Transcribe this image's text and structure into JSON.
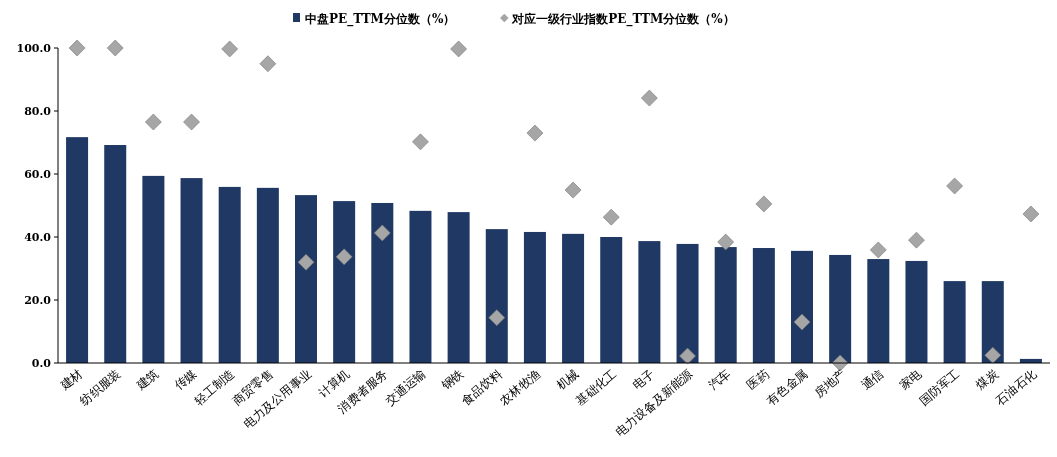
{
  "chart_data": {
    "type": "bar",
    "categories": [
      "建材",
      "纺织服装",
      "建筑",
      "传媒",
      "轻工制造",
      "商贸零售",
      "电力及公用事业",
      "计算机",
      "消费者服务",
      "交通运输",
      "钢铁",
      "食品饮料",
      "农林牧渔",
      "机械",
      "基础化工",
      "电子",
      "电力设备及新能源",
      "汽车",
      "医药",
      "有色金属",
      "房地产",
      "通信",
      "家电",
      "国防军工",
      "煤炭",
      "石油石化"
    ],
    "series": [
      {
        "name": "中盘PE_TTM分位数（%）",
        "color": "#1f3864",
        "values": [
          71.7,
          69.2,
          59.4,
          58.7,
          55.9,
          55.6,
          53.3,
          51.4,
          50.8,
          48.3,
          47.9,
          42.5,
          41.6,
          41.0,
          40.0,
          38.7,
          37.8,
          36.8,
          36.5,
          35.6,
          34.3,
          33.0,
          32.4,
          26.0,
          26.0,
          1.3
        ]
      },
      {
        "name": "对应一级行业指数PE_TTM分位数（%）",
        "type": "scatter",
        "marker": "diamond",
        "color": "#a6a6a6",
        "values": [
          100,
          100,
          76.5,
          76.5,
          99.7,
          95,
          32,
          33.7,
          41.3,
          70.2,
          99.7,
          14.4,
          73,
          54.9,
          46.3,
          84.1,
          2.2,
          38.4,
          50.5,
          13.0,
          0,
          35.9,
          39.0,
          56.2,
          2.5,
          47.3
        ]
      }
    ],
    "ylim": [
      0,
      100
    ],
    "yticks": [
      {
        "value": 0,
        "label": "0.0"
      },
      {
        "value": 20,
        "label": "20.0"
      },
      {
        "value": 40,
        "label": "40.0"
      },
      {
        "value": 60,
        "label": "60.0"
      },
      {
        "value": 80,
        "label": "80.0"
      },
      {
        "value": 100,
        "label": "100.0"
      }
    ],
    "grid": false,
    "legend": "top"
  }
}
